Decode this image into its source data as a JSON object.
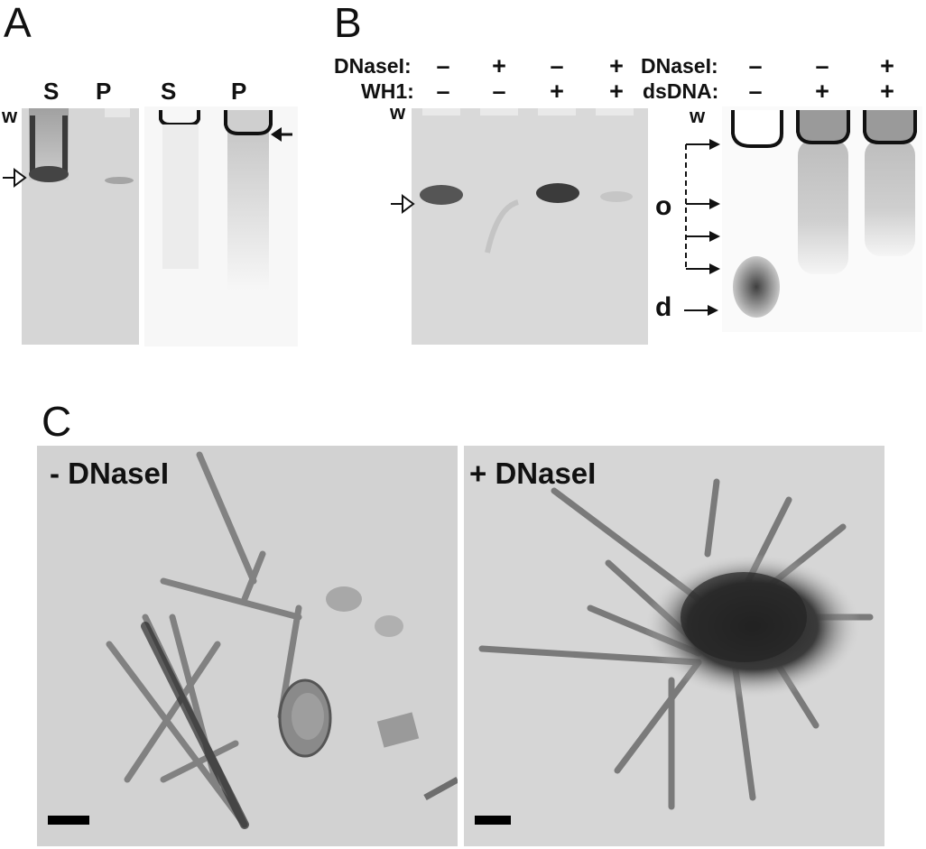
{
  "panels": {
    "a": {
      "letter": "A",
      "lanes": [
        "S",
        "P",
        "S",
        "P"
      ],
      "well_marker": "w"
    },
    "b": {
      "letter": "B",
      "left_gel": {
        "row1_label": "DNaseI:",
        "row1_signs": [
          "–",
          "+",
          "–",
          "+"
        ],
        "row2_label": "WH1:",
        "row2_signs": [
          "–",
          "–",
          "+",
          "+"
        ],
        "well_marker": "w"
      },
      "right_gel": {
        "row1_label": "DNaseI:",
        "row1_signs": [
          "–",
          "–",
          "+"
        ],
        "row2_label": "dsDNA:",
        "row2_signs": [
          "–",
          "+",
          "+"
        ],
        "well_marker": "w",
        "marker_o": "o",
        "marker_d": "d"
      }
    },
    "c": {
      "letter": "C",
      "left_image_label": "- DNaseI",
      "right_image_label": "+ DNaseI"
    }
  },
  "colors": {
    "gel_background": "#d6d6d6",
    "em_background": "#cfcfcf",
    "ink": "#111111"
  }
}
